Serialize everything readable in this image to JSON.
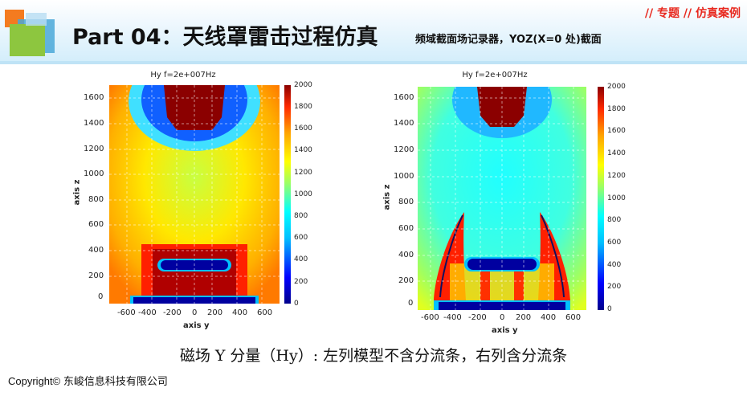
{
  "header": {
    "tag": "// 专题 // 仿真案例",
    "title": "Part 04：天线罩雷击过程仿真",
    "subtitle": "频域截面场记录器，YOZ(X=0 处)截面"
  },
  "plots": [
    {
      "title": "Hy f=2e+007Hz",
      "xlabel": "axis y",
      "ylabel": "axis z",
      "xticks": [
        "-600",
        "-400",
        "-200",
        "0",
        "200",
        "400",
        "600"
      ],
      "yticks": [
        "1600",
        "1400",
        "1200",
        "1000",
        "800",
        "600",
        "400",
        "200",
        "0"
      ],
      "cbar_ticks": [
        "2000",
        "1800",
        "1600",
        "1400",
        "1200",
        "1000",
        "800",
        "600",
        "400",
        "200",
        "0"
      ]
    },
    {
      "title": "Hy f=2e+007Hz",
      "xlabel": "axis y",
      "ylabel": "axis z",
      "xticks": [
        "-600",
        "-400",
        "-200",
        "0",
        "200",
        "400",
        "600"
      ],
      "yticks": [
        "1600",
        "1400",
        "1200",
        "1000",
        "800",
        "600",
        "400",
        "200",
        "0"
      ],
      "cbar_ticks": [
        "2000",
        "1800",
        "1600",
        "1400",
        "1200",
        "1000",
        "800",
        "600",
        "400",
        "200",
        "0"
      ]
    }
  ],
  "caption": "磁场 Y 分量（Hy）: 左列模型不含分流条，右列含分流条",
  "copyright": "Copyright© 东峻信息科技有限公司",
  "colors": {
    "tag": "#e8281e",
    "logo_orange": "#f47b20",
    "logo_green": "#8dc63f",
    "logo_blue": "#4aa8d8"
  }
}
